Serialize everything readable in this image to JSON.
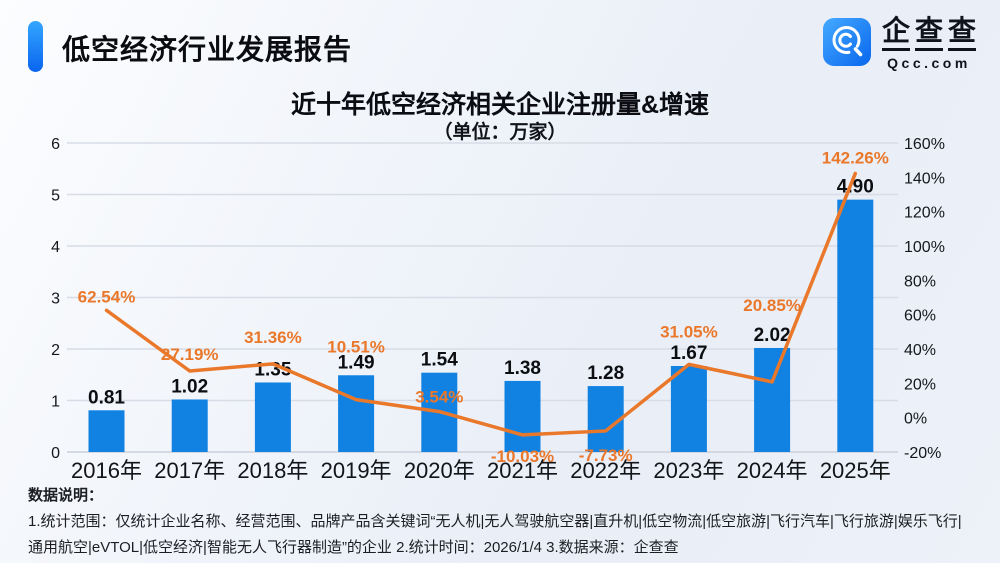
{
  "header": {
    "title": "低空经济行业发展报告",
    "logo": {
      "brand": "企查查",
      "domain": "Qcc.com",
      "brand_blue": "#0b6bf0"
    }
  },
  "chart_data": {
    "type": "bar+line combo",
    "title": "近十年低空经济相关企业注册量&增速",
    "subtitle": "（单位：万家）",
    "categories": [
      "2016年",
      "2017年",
      "2018年",
      "2019年",
      "2020年",
      "2021年",
      "2022年",
      "2023年",
      "2024年",
      "2025年"
    ],
    "series": [
      {
        "name": "注册量(万家)",
        "type": "bar",
        "axis": "left",
        "values": [
          0.81,
          1.02,
          1.35,
          1.49,
          1.54,
          1.38,
          1.28,
          1.67,
          2.02,
          4.9
        ],
        "labels": [
          "0.81",
          "1.02",
          "1.35",
          "1.49",
          "1.54",
          "1.38",
          "1.28",
          "1.67",
          "2.02",
          "4.90"
        ],
        "color": "#1182e2"
      },
      {
        "name": "增速(%)",
        "type": "line",
        "axis": "right",
        "values": [
          62.54,
          27.19,
          31.36,
          10.51,
          3.54,
          -10.03,
          -7.73,
          31.05,
          20.85,
          142.26
        ],
        "labels": [
          "62.54%",
          "27.19%",
          "31.36%",
          "10.51%",
          "3.54%",
          "-10.03%",
          "-7.73%",
          "31.05%",
          "20.85%",
          "142.26%"
        ],
        "color": "#ea782b"
      }
    ],
    "left_axis": {
      "min": 0,
      "max": 6,
      "ticks": [
        "0",
        "1",
        "2",
        "3",
        "4",
        "5",
        "6"
      ]
    },
    "right_axis": {
      "min": -20,
      "max": 160,
      "ticks": [
        "-20%",
        "0%",
        "20%",
        "40%",
        "60%",
        "80%",
        "100%",
        "120%",
        "140%",
        "160%"
      ]
    },
    "grid": true,
    "legend": false,
    "colors": {
      "grid": "#d7dce6",
      "baseline": "#c9cfda",
      "axis_text": "#15171c",
      "bar_label": "#0d0e11",
      "x_label": "#121418"
    }
  },
  "footer": {
    "label": "数据说明：",
    "lines": [
      "1.统计范围：仅统计企业名称、经营范围、品牌产品含关键词“无人机|无人驾驶航空器|直升机|低空物流|低空旅游|飞行汽车|飞行旅游|娱乐飞行|",
      "通用航空|eVTOL|低空经济|智能无人飞行器制造”的企业  2.统计时间：2026/1/4  3.数据来源：企查查"
    ]
  }
}
